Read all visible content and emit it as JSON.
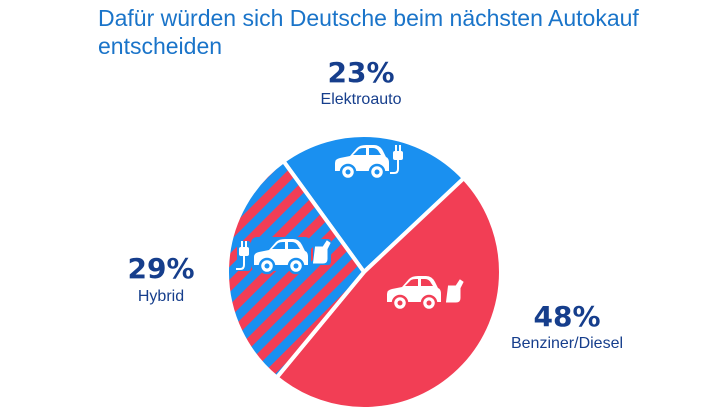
{
  "chart_data": {
    "type": "pie",
    "title": "Dafür würden sich Deutsche beim nächsten Autokauf entscheiden",
    "slices": [
      {
        "label": "Elektroauto",
        "value": 23,
        "value_label": "23%",
        "color": "#1a90f0",
        "pattern": "solid",
        "icon": "electric-car-icon"
      },
      {
        "label": "Benziner/Diesel",
        "value": 48,
        "value_label": "48%",
        "color": "#f23e55",
        "pattern": "solid",
        "icon": "fuel-car-icon"
      },
      {
        "label": "Hybrid",
        "value": 29,
        "value_label": "29%",
        "color": "#1a90f0",
        "pattern": "diagonal-stripes",
        "stripe_color": "#f23e55",
        "icon": "hybrid-car-icon"
      }
    ]
  },
  "colors": {
    "title": "#1a74c9",
    "labels": "#163e8c",
    "background": "#ffffff"
  }
}
